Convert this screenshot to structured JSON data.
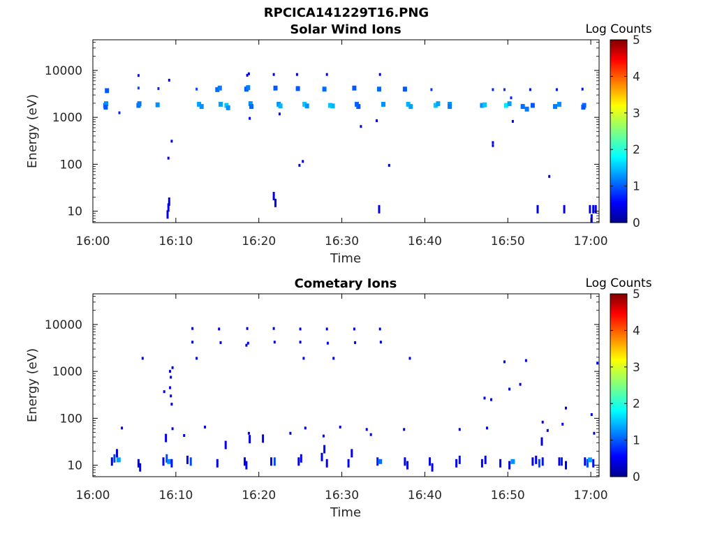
{
  "page_title": "RPCICA141229T16.PNG",
  "chart_data": [
    {
      "type": "heatmap",
      "title": "Solar Wind Ions",
      "xlabel": "Time",
      "ylabel": "Energy (eV)",
      "x_ticks": [
        "16:00",
        "16:10",
        "16:20",
        "16:30",
        "16:40",
        "16:50",
        "17:00"
      ],
      "xlim": [
        "16:00",
        "17:01"
      ],
      "y_scale": "log",
      "y_ticks": [
        "10",
        "100",
        "1000",
        "10000"
      ],
      "ylim": [
        5.7,
        45000
      ],
      "colorbar": {
        "label": "Log Counts",
        "ticks": [
          "0",
          "1",
          "2",
          "3",
          "4",
          "5"
        ],
        "range": [
          0,
          5
        ],
        "colormap": "jet"
      },
      "cells": [
        {
          "t": 1.5,
          "e": 1800,
          "c": 1.0
        },
        {
          "t": 1.6,
          "e": 1950,
          "c": 1.2
        },
        {
          "t": 1.55,
          "e": 1650,
          "c": 0.9
        },
        {
          "t": 1.7,
          "e": 3700,
          "c": 0.9
        },
        {
          "t": 3.2,
          "e": 1250,
          "c": 0.6
        },
        {
          "t": 5.5,
          "e": 1800,
          "c": 1.0
        },
        {
          "t": 5.6,
          "e": 1950,
          "c": 1.1
        },
        {
          "t": 5.5,
          "e": 4200,
          "c": 0.8
        },
        {
          "t": 5.5,
          "e": 7800,
          "c": 0.5
        },
        {
          "t": 7.8,
          "e": 1850,
          "c": 1.2
        },
        {
          "t": 7.9,
          "e": 4100,
          "c": 0.6
        },
        {
          "t": 9.2,
          "e": 6200,
          "c": 0.4
        },
        {
          "t": 9.1,
          "e": 135,
          "c": 0.3
        },
        {
          "t": 9.5,
          "e": 310,
          "c": 0.3
        },
        {
          "t": 12.5,
          "e": 4000,
          "c": 0.8
        },
        {
          "t": 12.8,
          "e": 1900,
          "c": 1.3
        },
        {
          "t": 13.1,
          "e": 1700,
          "c": 1.2
        },
        {
          "t": 15.0,
          "e": 3900,
          "c": 1.0
        },
        {
          "t": 15.3,
          "e": 4200,
          "c": 1.1
        },
        {
          "t": 15.4,
          "e": 1900,
          "c": 1.3
        },
        {
          "t": 16.1,
          "e": 1800,
          "c": 1.5
        },
        {
          "t": 16.3,
          "e": 1600,
          "c": 1.2
        },
        {
          "t": 18.5,
          "e": 4000,
          "c": 0.9
        },
        {
          "t": 18.7,
          "e": 4300,
          "c": 1.1
        },
        {
          "t": 18.6,
          "e": 7900,
          "c": 0.4
        },
        {
          "t": 19.0,
          "e": 1950,
          "c": 1.2
        },
        {
          "t": 19.1,
          "e": 1700,
          "c": 1.0
        },
        {
          "t": 18.9,
          "e": 950,
          "c": 0.4
        },
        {
          "t": 18.8,
          "e": 8500,
          "c": 0.3
        },
        {
          "t": 21.8,
          "e": 8200,
          "c": 0.4
        },
        {
          "t": 22.0,
          "e": 4200,
          "c": 0.9
        },
        {
          "t": 22.4,
          "e": 1900,
          "c": 1.2
        },
        {
          "t": 22.6,
          "e": 1750,
          "c": 1.4
        },
        {
          "t": 22.5,
          "e": 1180,
          "c": 0.4
        },
        {
          "t": 24.7,
          "e": 4100,
          "c": 0.9
        },
        {
          "t": 24.6,
          "e": 8200,
          "c": 0.4
        },
        {
          "t": 25.5,
          "e": 1900,
          "c": 1.5
        },
        {
          "t": 25.8,
          "e": 1750,
          "c": 1.2
        },
        {
          "t": 24.9,
          "e": 95,
          "c": 0.3
        },
        {
          "t": 25.3,
          "e": 115,
          "c": 0.3
        },
        {
          "t": 27.9,
          "e": 4000,
          "c": 1.0
        },
        {
          "t": 28.2,
          "e": 8200,
          "c": 0.4
        },
        {
          "t": 28.6,
          "e": 1800,
          "c": 1.5
        },
        {
          "t": 28.9,
          "e": 1750,
          "c": 1.4
        },
        {
          "t": 31.5,
          "e": 4200,
          "c": 0.9
        },
        {
          "t": 31.8,
          "e": 1900,
          "c": 1.0
        },
        {
          "t": 32.0,
          "e": 1700,
          "c": 0.9
        },
        {
          "t": 32.3,
          "e": 640,
          "c": 0.3
        },
        {
          "t": 34.5,
          "e": 4000,
          "c": 1.0
        },
        {
          "t": 34.6,
          "e": 8200,
          "c": 0.4
        },
        {
          "t": 34.2,
          "e": 850,
          "c": 0.3
        },
        {
          "t": 35.0,
          "e": 1900,
          "c": 1.2
        },
        {
          "t": 35.7,
          "e": 95,
          "c": 0.3
        },
        {
          "t": 37.6,
          "e": 4000,
          "c": 0.9
        },
        {
          "t": 38.0,
          "e": 1900,
          "c": 1.4
        },
        {
          "t": 38.3,
          "e": 1700,
          "c": 1.3
        },
        {
          "t": 40.8,
          "e": 3900,
          "c": 0.7
        },
        {
          "t": 41.3,
          "e": 1800,
          "c": 1.5
        },
        {
          "t": 41.6,
          "e": 1950,
          "c": 1.3
        },
        {
          "t": 43.0,
          "e": 1900,
          "c": 1.2
        },
        {
          "t": 43.0,
          "e": 1700,
          "c": 1.1
        },
        {
          "t": 46.9,
          "e": 1800,
          "c": 1.2
        },
        {
          "t": 47.2,
          "e": 1850,
          "c": 1.5
        },
        {
          "t": 48.2,
          "e": 3900,
          "c": 0.6
        },
        {
          "t": 48.2,
          "e": 250,
          "c": 0.3
        },
        {
          "t": 48.2,
          "e": 290,
          "c": 0.3
        },
        {
          "t": 49.6,
          "e": 3900,
          "c": 0.7
        },
        {
          "t": 49.8,
          "e": 1800,
          "c": 1.7
        },
        {
          "t": 50.2,
          "e": 1950,
          "c": 1.3
        },
        {
          "t": 50.4,
          "e": 2600,
          "c": 0.6
        },
        {
          "t": 50.6,
          "e": 820,
          "c": 0.3
        },
        {
          "t": 51.8,
          "e": 1700,
          "c": 1.0
        },
        {
          "t": 52.3,
          "e": 1500,
          "c": 1.1
        },
        {
          "t": 52.7,
          "e": 3900,
          "c": 0.5
        },
        {
          "t": 53.0,
          "e": 1800,
          "c": 0.9
        },
        {
          "t": 55.0,
          "e": 55,
          "c": 0.3
        },
        {
          "t": 55.7,
          "e": 1700,
          "c": 1.1
        },
        {
          "t": 55.9,
          "e": 3900,
          "c": 0.5
        },
        {
          "t": 56.2,
          "e": 1900,
          "c": 1.2
        },
        {
          "t": 59.0,
          "e": 4000,
          "c": 0.5
        },
        {
          "t": 59.2,
          "e": 1800,
          "c": 1.0
        },
        {
          "t": 59.1,
          "e": 1650,
          "c": 0.9
        },
        {
          "t": 9.0,
          "e": 8.5,
          "c": 0.3
        },
        {
          "t": 9.1,
          "e": 12,
          "c": 0.3
        },
        {
          "t": 9.2,
          "e": 16,
          "c": 0.3
        },
        {
          "t": 21.8,
          "e": 21,
          "c": 0.3
        },
        {
          "t": 22.0,
          "e": 15,
          "c": 0.3
        },
        {
          "t": 34.5,
          "e": 11,
          "c": 0.3
        },
        {
          "t": 53.6,
          "e": 11,
          "c": 0.3
        },
        {
          "t": 56.8,
          "e": 11,
          "c": 0.3
        },
        {
          "t": 59.9,
          "e": 11,
          "c": 0.3
        },
        {
          "t": 60.3,
          "e": 11,
          "c": 0.3
        },
        {
          "t": 60.6,
          "e": 11,
          "c": 0.3
        },
        {
          "t": 60.1,
          "e": 7,
          "c": 0.3
        }
      ]
    },
    {
      "type": "heatmap",
      "title": "Cometary Ions",
      "xlabel": "Time",
      "ylabel": "Energy (eV)",
      "x_ticks": [
        "16:00",
        "16:10",
        "16:20",
        "16:30",
        "16:40",
        "16:50",
        "17:00"
      ],
      "xlim": [
        "16:00",
        "17:01"
      ],
      "y_scale": "log",
      "y_ticks": [
        "10",
        "100",
        "1000",
        "10000"
      ],
      "ylim": [
        5.7,
        45000
      ],
      "colorbar": {
        "label": "Log Counts",
        "ticks": [
          "0",
          "1",
          "2",
          "3",
          "4",
          "5"
        ],
        "range": [
          0,
          5
        ],
        "colormap": "jet"
      },
      "cells": [
        {
          "t": 12.0,
          "e": 8200,
          "c": 0.3
        },
        {
          "t": 12.0,
          "e": 4200,
          "c": 0.3
        },
        {
          "t": 12.5,
          "e": 1900,
          "c": 0.3
        },
        {
          "t": 15.2,
          "e": 8000,
          "c": 0.3
        },
        {
          "t": 15.4,
          "e": 4100,
          "c": 0.3
        },
        {
          "t": 18.6,
          "e": 8200,
          "c": 0.3
        },
        {
          "t": 18.7,
          "e": 4000,
          "c": 0.3
        },
        {
          "t": 18.5,
          "e": 3600,
          "c": 0.3
        },
        {
          "t": 21.8,
          "e": 8200,
          "c": 0.3
        },
        {
          "t": 21.9,
          "e": 4200,
          "c": 0.3
        },
        {
          "t": 25.0,
          "e": 8000,
          "c": 0.3
        },
        {
          "t": 25.0,
          "e": 4200,
          "c": 0.3
        },
        {
          "t": 25.4,
          "e": 1900,
          "c": 0.3
        },
        {
          "t": 28.2,
          "e": 8000,
          "c": 0.3
        },
        {
          "t": 28.3,
          "e": 4000,
          "c": 0.3
        },
        {
          "t": 29.0,
          "e": 1900,
          "c": 0.3
        },
        {
          "t": 31.5,
          "e": 8000,
          "c": 0.3
        },
        {
          "t": 31.6,
          "e": 4100,
          "c": 0.3
        },
        {
          "t": 34.6,
          "e": 8000,
          "c": 0.3
        },
        {
          "t": 34.7,
          "e": 4200,
          "c": 0.3
        },
        {
          "t": 38.2,
          "e": 1900,
          "c": 0.3
        },
        {
          "t": 6.0,
          "e": 1900,
          "c": 0.3
        },
        {
          "t": 9.3,
          "e": 1000,
          "c": 0.3
        },
        {
          "t": 9.6,
          "e": 1200,
          "c": 0.3
        },
        {
          "t": 9.4,
          "e": 750,
          "c": 0.3
        },
        {
          "t": 8.6,
          "e": 370,
          "c": 0.3
        },
        {
          "t": 9.3,
          "e": 450,
          "c": 0.3
        },
        {
          "t": 9.5,
          "e": 200,
          "c": 0.3
        },
        {
          "t": 9.4,
          "e": 300,
          "c": 0.3
        },
        {
          "t": 3.5,
          "e": 62,
          "c": 0.3
        },
        {
          "t": 9.6,
          "e": 60,
          "c": 0.3
        },
        {
          "t": 8.8,
          "e": 38,
          "c": 0.3
        },
        {
          "t": 13.5,
          "e": 65,
          "c": 0.3
        },
        {
          "t": 11.0,
          "e": 43,
          "c": 0.3
        },
        {
          "t": 16.0,
          "e": 27,
          "c": 0.3
        },
        {
          "t": 18.8,
          "e": 48,
          "c": 0.3
        },
        {
          "t": 18.9,
          "e": 36,
          "c": 0.3
        },
        {
          "t": 20.5,
          "e": 37,
          "c": 0.3
        },
        {
          "t": 23.8,
          "e": 48,
          "c": 0.3
        },
        {
          "t": 25.6,
          "e": 62,
          "c": 0.3
        },
        {
          "t": 27.8,
          "e": 42,
          "c": 0.3
        },
        {
          "t": 29.8,
          "e": 65,
          "c": 0.3
        },
        {
          "t": 33.0,
          "e": 58,
          "c": 0.3
        },
        {
          "t": 33.5,
          "e": 45,
          "c": 0.3
        },
        {
          "t": 37.5,
          "e": 58,
          "c": 0.3
        },
        {
          "t": 44.2,
          "e": 58,
          "c": 0.3
        },
        {
          "t": 47.2,
          "e": 270,
          "c": 0.3
        },
        {
          "t": 48.0,
          "e": 250,
          "c": 0.3
        },
        {
          "t": 47.5,
          "e": 62,
          "c": 0.3
        },
        {
          "t": 49.6,
          "e": 1600,
          "c": 0.3
        },
        {
          "t": 50.2,
          "e": 420,
          "c": 0.3
        },
        {
          "t": 51.5,
          "e": 530,
          "c": 0.3
        },
        {
          "t": 52.2,
          "e": 1700,
          "c": 0.3
        },
        {
          "t": 54.2,
          "e": 83,
          "c": 0.3
        },
        {
          "t": 54.8,
          "e": 55,
          "c": 0.3
        },
        {
          "t": 57.0,
          "e": 165,
          "c": 0.3
        },
        {
          "t": 56.6,
          "e": 75,
          "c": 0.3
        },
        {
          "t": 60.1,
          "e": 120,
          "c": 0.3
        },
        {
          "t": 60.4,
          "e": 48,
          "c": 0.3
        },
        {
          "t": 60.8,
          "e": 1500,
          "c": 0.3
        },
        {
          "t": 54.1,
          "e": 32,
          "c": 0.3
        },
        {
          "t": 2.3,
          "e": 12,
          "c": 0.3
        },
        {
          "t": 2.6,
          "e": 14,
          "c": 0.8
        },
        {
          "t": 2.9,
          "e": 18,
          "c": 0.3
        },
        {
          "t": 3.1,
          "e": 13,
          "c": 1.3
        },
        {
          "t": 5.5,
          "e": 11,
          "c": 0.3
        },
        {
          "t": 5.7,
          "e": 9,
          "c": 0.3
        },
        {
          "t": 8.5,
          "e": 12,
          "c": 0.4
        },
        {
          "t": 8.9,
          "e": 14,
          "c": 0.8
        },
        {
          "t": 9.2,
          "e": 12,
          "c": 1.2
        },
        {
          "t": 9.5,
          "e": 11,
          "c": 0.5
        },
        {
          "t": 11.4,
          "e": 13,
          "c": 0.4
        },
        {
          "t": 11.8,
          "e": 12,
          "c": 0.8
        },
        {
          "t": 15.0,
          "e": 11,
          "c": 0.3
        },
        {
          "t": 18.3,
          "e": 12,
          "c": 0.3
        },
        {
          "t": 18.5,
          "e": 10,
          "c": 0.4
        },
        {
          "t": 21.5,
          "e": 12,
          "c": 0.4
        },
        {
          "t": 21.9,
          "e": 12,
          "c": 0.8
        },
        {
          "t": 24.8,
          "e": 12,
          "c": 0.3
        },
        {
          "t": 25.1,
          "e": 14,
          "c": 0.4
        },
        {
          "t": 27.6,
          "e": 15,
          "c": 0.3
        },
        {
          "t": 27.9,
          "e": 22,
          "c": 0.4
        },
        {
          "t": 28.2,
          "e": 11,
          "c": 0.3
        },
        {
          "t": 30.8,
          "e": 11,
          "c": 0.3
        },
        {
          "t": 31.2,
          "e": 18,
          "c": 0.3
        },
        {
          "t": 34.3,
          "e": 12,
          "c": 0.5
        },
        {
          "t": 34.6,
          "e": 12,
          "c": 1.0
        },
        {
          "t": 37.6,
          "e": 12,
          "c": 0.3
        },
        {
          "t": 37.9,
          "e": 10,
          "c": 0.3
        },
        {
          "t": 40.6,
          "e": 12,
          "c": 0.3
        },
        {
          "t": 40.9,
          "e": 9,
          "c": 0.3
        },
        {
          "t": 43.8,
          "e": 11,
          "c": 0.4
        },
        {
          "t": 44.2,
          "e": 13,
          "c": 0.5
        },
        {
          "t": 46.9,
          "e": 11,
          "c": 0.3
        },
        {
          "t": 47.3,
          "e": 13,
          "c": 0.4
        },
        {
          "t": 49.1,
          "e": 11,
          "c": 0.3
        },
        {
          "t": 50.2,
          "e": 10,
          "c": 0.3
        },
        {
          "t": 50.6,
          "e": 12,
          "c": 1.2
        },
        {
          "t": 53.0,
          "e": 12,
          "c": 0.3
        },
        {
          "t": 53.4,
          "e": 13,
          "c": 0.4
        },
        {
          "t": 53.8,
          "e": 11,
          "c": 0.8
        },
        {
          "t": 54.2,
          "e": 12,
          "c": 0.5
        },
        {
          "t": 56.2,
          "e": 12,
          "c": 0.3
        },
        {
          "t": 56.5,
          "e": 12,
          "c": 0.6
        },
        {
          "t": 57.0,
          "e": 10,
          "c": 0.3
        },
        {
          "t": 59.3,
          "e": 12,
          "c": 0.3
        },
        {
          "t": 59.6,
          "e": 11,
          "c": 0.8
        },
        {
          "t": 59.9,
          "e": 13,
          "c": 1.3
        },
        {
          "t": 60.3,
          "e": 11,
          "c": 0.5
        }
      ]
    }
  ]
}
